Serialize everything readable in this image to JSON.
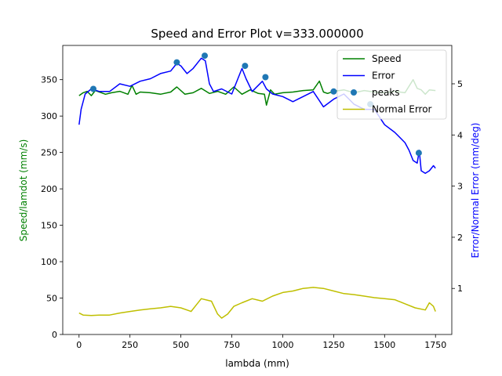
{
  "chart_data": {
    "type": "line",
    "title": "Speed and Error Plot v=333.000000",
    "xlabel": "lambda (mm)",
    "ylabel_left": "Speed/lamdot (mm/s)",
    "ylabel_right": "Error/Normal Error (mm/deg)",
    "xlim": [
      -80,
      1830
    ],
    "ylim_left": [
      0,
      397
    ],
    "ylim_right": [
      0.1,
      5.75
    ],
    "x_ticks": [
      0,
      250,
      500,
      750,
      1000,
      1250,
      1500,
      1750
    ],
    "y_left_ticks": [
      0,
      50,
      100,
      150,
      200,
      250,
      300,
      350
    ],
    "y_right_ticks": [
      1,
      2,
      3,
      4,
      5
    ],
    "grid": false,
    "legend_position": "top-right",
    "colors": {
      "speed": "#008000",
      "error": "#0000ff",
      "peaks": "#1f77b4",
      "normal_error": "#bfbf00",
      "left_label": "#008000",
      "right_label": "#0000ff"
    },
    "series": [
      {
        "name": "Speed",
        "axis": "left",
        "style": "line",
        "x": [
          0,
          20,
          40,
          60,
          80,
          100,
          130,
          160,
          200,
          240,
          260,
          280,
          300,
          350,
          400,
          450,
          480,
          520,
          560,
          600,
          640,
          680,
          720,
          760,
          800,
          840,
          880,
          910,
          920,
          940,
          960,
          1000,
          1050,
          1100,
          1150,
          1180,
          1200,
          1220,
          1250,
          1300,
          1350,
          1400,
          1450,
          1500,
          1550,
          1600,
          1640,
          1660,
          1680,
          1700,
          1720,
          1750
        ],
        "y": [
          328,
          332,
          334,
          328,
          335,
          333,
          330,
          332,
          334,
          330,
          342,
          330,
          333,
          332,
          330,
          333,
          340,
          330,
          332,
          338,
          331,
          334,
          330,
          340,
          330,
          336,
          331,
          330,
          315,
          336,
          330,
          332,
          333,
          335,
          336,
          348,
          333,
          331,
          334,
          336,
          332,
          335,
          333,
          332,
          334,
          332,
          350,
          338,
          336,
          330,
          336,
          335
        ]
      },
      {
        "name": "Error",
        "axis": "right",
        "style": "line",
        "x": [
          0,
          10,
          30,
          60,
          100,
          150,
          200,
          250,
          300,
          350,
          400,
          450,
          480,
          500,
          530,
          560,
          600,
          620,
          640,
          660,
          700,
          750,
          800,
          820,
          850,
          900,
          920,
          950,
          1000,
          1050,
          1100,
          1150,
          1200,
          1250,
          1300,
          1350,
          1400,
          1450,
          1500,
          1550,
          1600,
          1620,
          1640,
          1660,
          1670,
          1680,
          1700,
          1720,
          1740,
          1750
        ],
        "y": [
          4.2,
          4.5,
          4.8,
          4.9,
          4.85,
          4.85,
          5.0,
          4.95,
          5.05,
          5.1,
          5.2,
          5.25,
          5.4,
          5.35,
          5.2,
          5.3,
          5.5,
          5.45,
          5.0,
          4.85,
          4.9,
          4.8,
          5.3,
          5.1,
          4.85,
          5.05,
          4.9,
          4.8,
          4.75,
          4.65,
          4.75,
          4.85,
          4.55,
          4.7,
          4.8,
          4.6,
          4.5,
          4.5,
          4.2,
          4.05,
          3.85,
          3.7,
          3.5,
          3.45,
          3.7,
          3.3,
          3.25,
          3.3,
          3.4,
          3.35
        ]
      },
      {
        "name": "peaks",
        "axis": "right",
        "style": "scatter",
        "x": [
          70,
          480,
          617,
          815,
          915,
          1250,
          1430,
          1668
        ],
        "y": [
          4.9,
          5.42,
          5.55,
          5.35,
          5.13,
          4.85,
          4.6,
          3.65
        ]
      },
      {
        "name": "Normal Error",
        "axis": "right",
        "style": "line",
        "x": [
          0,
          20,
          60,
          100,
          150,
          200,
          250,
          300,
          350,
          400,
          450,
          500,
          550,
          580,
          600,
          650,
          680,
          700,
          730,
          760,
          800,
          850,
          900,
          950,
          1000,
          1050,
          1100,
          1150,
          1200,
          1250,
          1300,
          1350,
          1400,
          1450,
          1500,
          1550,
          1600,
          1650,
          1700,
          1720,
          1740,
          1750
        ],
        "y": [
          0.52,
          0.48,
          0.47,
          0.48,
          0.48,
          0.52,
          0.55,
          0.58,
          0.6,
          0.62,
          0.65,
          0.62,
          0.55,
          0.7,
          0.8,
          0.75,
          0.5,
          0.42,
          0.5,
          0.65,
          0.72,
          0.8,
          0.75,
          0.85,
          0.92,
          0.95,
          1.0,
          1.02,
          1.0,
          0.95,
          0.9,
          0.88,
          0.85,
          0.82,
          0.8,
          0.78,
          0.7,
          0.62,
          0.58,
          0.72,
          0.65,
          0.55
        ]
      }
    ]
  }
}
